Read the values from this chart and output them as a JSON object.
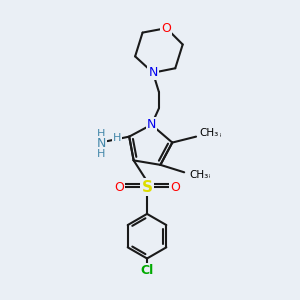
{
  "background_color": "#eaeff5",
  "atom_colors": {
    "C": "#000000",
    "N": "#0000ee",
    "O": "#ff0000",
    "S": "#dddd00",
    "Cl": "#00aa00",
    "H": "#4488aa",
    "NH": "#4488aa"
  },
  "bond_color": "#1a1a1a",
  "bond_width": 1.5,
  "fig_width": 3.0,
  "fig_height": 3.0,
  "dpi": 100
}
